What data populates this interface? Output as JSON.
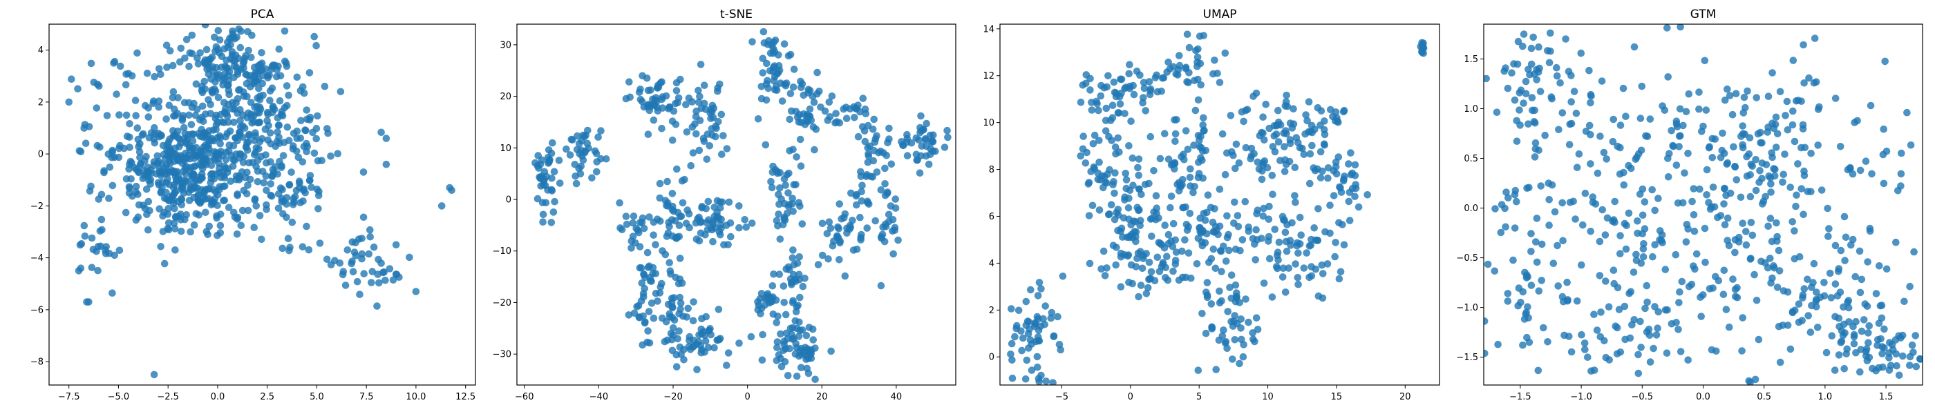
{
  "chart_data": [
    {
      "type": "scatter",
      "title": "PCA",
      "xlabel": "",
      "ylabel": "",
      "xlim": [
        -8.5,
        13.0
      ],
      "ylim": [
        -8.9,
        5.0
      ],
      "xticks": [
        -7.5,
        -5.0,
        -2.5,
        0.0,
        2.5,
        5.0,
        7.5,
        10.0,
        12.5
      ],
      "xtick_labels": [
        "−7.5",
        "−5.0",
        "−2.5",
        "0.0",
        "2.5",
        "5.0",
        "7.5",
        "10.0",
        "12.5"
      ],
      "yticks": [
        -8,
        -6,
        -4,
        -2,
        0,
        2,
        4
      ],
      "ytick_labels": [
        "−8",
        "−6",
        "−4",
        "−2",
        "0",
        "2",
        "4"
      ],
      "grid": false,
      "point_color": "#1f77b4",
      "clusters": [
        {
          "cx": -1.5,
          "cy": -0.5,
          "sx": 1.2,
          "sy": 1.2,
          "n": 340
        },
        {
          "cx": 1.5,
          "cy": 1.5,
          "sx": 1.8,
          "sy": 1.6,
          "n": 260
        },
        {
          "cx": -4.5,
          "cy": 0.5,
          "sx": 1.6,
          "sy": 1.5,
          "n": 110
        },
        {
          "cx": 0.5,
          "cy": 3.6,
          "sx": 1.4,
          "sy": 0.5,
          "n": 70
        },
        {
          "cx": 3.5,
          "cy": -1.0,
          "sx": 1.6,
          "sy": 1.3,
          "n": 90
        },
        {
          "cx": 7.3,
          "cy": -4.2,
          "sx": 1.1,
          "sy": 0.6,
          "n": 45
        },
        {
          "cx": -6.2,
          "cy": -3.6,
          "sx": 0.5,
          "sy": 0.9,
          "n": 20
        }
      ],
      "points": [
        {
          "x": -3.2,
          "y": -8.5
        },
        {
          "x": -6.5,
          "y": -5.7
        },
        {
          "x": -6.6,
          "y": -5.7
        },
        {
          "x": -7.0,
          "y": -4.5
        },
        {
          "x": -6.9,
          "y": -4.4
        },
        {
          "x": 11.3,
          "y": -2.0
        },
        {
          "x": 11.8,
          "y": -1.4
        },
        {
          "x": 11.7,
          "y": -1.3
        },
        {
          "x": 10.0,
          "y": -5.3
        },
        {
          "x": 8.5,
          "y": 0.6
        },
        {
          "x": 8.5,
          "y": -0.4
        },
        {
          "x": 9.0,
          "y": -3.5
        },
        {
          "x": -7.5,
          "y": 2.0
        },
        {
          "x": -5.1,
          "y": 2.3
        },
        {
          "x": -5.2,
          "y": -3.9
        },
        {
          "x": 0.5,
          "y": 4.3
        },
        {
          "x": -0.5,
          "y": -3.1
        },
        {
          "x": 6.2,
          "y": 2.4
        }
      ]
    },
    {
      "type": "scatter",
      "title": "t-SNE",
      "xlabel": "",
      "ylabel": "",
      "xlim": [
        -62,
        56
      ],
      "ylim": [
        -36,
        34
      ],
      "xticks": [
        -60,
        -40,
        -20,
        0,
        20,
        40
      ],
      "xtick_labels": [
        "−60",
        "−40",
        "−20",
        "0",
        "20",
        "40"
      ],
      "yticks": [
        -30,
        -20,
        -10,
        0,
        10,
        20,
        30
      ],
      "ytick_labels": [
        "−30",
        "−20",
        "−10",
        "0",
        "10",
        "20",
        "30"
      ],
      "grid": false,
      "point_color": "#1f77b4",
      "clusters": [
        {
          "cx": -54,
          "cy": 4,
          "sx": 1.8,
          "sy": 3.5,
          "n": 40
        },
        {
          "cx": -44,
          "cy": 9,
          "sx": 2.5,
          "sy": 2.5,
          "n": 35
        },
        {
          "cx": -22,
          "cy": 19,
          "sx": 4.5,
          "sy": 2.5,
          "n": 55
        },
        {
          "cx": -10,
          "cy": 16,
          "sx": 3.0,
          "sy": 4.0,
          "n": 40
        },
        {
          "cx": 7,
          "cy": 25,
          "sx": 2.5,
          "sy": 4.5,
          "n": 45
        },
        {
          "cx": 16,
          "cy": 18,
          "sx": 3.5,
          "sy": 4.0,
          "n": 45
        },
        {
          "cx": 30,
          "cy": 16,
          "sx": 3.0,
          "sy": 3.0,
          "n": 25
        },
        {
          "cx": 47,
          "cy": 11,
          "sx": 3.0,
          "sy": 2.0,
          "n": 40
        },
        {
          "cx": 33,
          "cy": 5,
          "sx": 3.0,
          "sy": 4.5,
          "n": 30
        },
        {
          "cx": 10,
          "cy": 2,
          "sx": 2.5,
          "sy": 5.5,
          "n": 40
        },
        {
          "cx": -20,
          "cy": -1,
          "sx": 2.5,
          "sy": 5.0,
          "n": 35
        },
        {
          "cx": -8,
          "cy": -5,
          "sx": 4.0,
          "sy": 2.5,
          "n": 50
        },
        {
          "cx": -28,
          "cy": -5,
          "sx": 3.0,
          "sy": 2.0,
          "n": 25
        },
        {
          "cx": 26,
          "cy": -6,
          "sx": 3.0,
          "sy": 2.5,
          "n": 35
        },
        {
          "cx": 38,
          "cy": -4,
          "sx": 2.5,
          "sy": 5.0,
          "n": 30
        },
        {
          "cx": -28,
          "cy": -18,
          "sx": 2.0,
          "sy": 5.0,
          "n": 40
        },
        {
          "cx": -20,
          "cy": -20,
          "sx": 2.0,
          "sy": 4.5,
          "n": 30
        },
        {
          "cx": -13,
          "cy": -27,
          "sx": 4.0,
          "sy": 3.0,
          "n": 50
        },
        {
          "cx": 5,
          "cy": -21,
          "sx": 2.5,
          "sy": 3.0,
          "n": 30
        },
        {
          "cx": 12,
          "cy": -16,
          "sx": 2.0,
          "sy": 5.0,
          "n": 30
        },
        {
          "cx": 13,
          "cy": -29,
          "sx": 3.5,
          "sy": 2.5,
          "n": 55
        }
      ],
      "points": []
    },
    {
      "type": "scatter",
      "title": "UMAP",
      "xlabel": "",
      "ylabel": "",
      "xlim": [
        -9.5,
        22.5
      ],
      "ylim": [
        -1.2,
        14.2
      ],
      "xticks": [
        -5,
        0,
        5,
        10,
        15,
        20
      ],
      "xtick_labels": [
        "−5",
        "0",
        "5",
        "10",
        "15",
        "20"
      ],
      "yticks": [
        0,
        2,
        4,
        6,
        8,
        10,
        12,
        14
      ],
      "ytick_labels": [
        "0",
        "2",
        "4",
        "6",
        "8",
        "10",
        "12",
        "14"
      ],
      "grid": false,
      "point_color": "#1f77b4",
      "clusters": [
        {
          "cx": -7.0,
          "cy": 1.0,
          "sx": 1.0,
          "sy": 1.2,
          "n": 60
        },
        {
          "cx": -0.5,
          "cy": 11.4,
          "sx": 1.5,
          "sy": 0.6,
          "n": 50
        },
        {
          "cx": 4.5,
          "cy": 12.4,
          "sx": 1.2,
          "sy": 0.5,
          "n": 30
        },
        {
          "cx": -2.5,
          "cy": 9.0,
          "sx": 0.8,
          "sy": 1.2,
          "n": 30
        },
        {
          "cx": 0.0,
          "cy": 6.5,
          "sx": 1.5,
          "sy": 1.4,
          "n": 80
        },
        {
          "cx": 1.5,
          "cy": 4.0,
          "sx": 2.0,
          "sy": 0.6,
          "n": 60
        },
        {
          "cx": 4.5,
          "cy": 8.5,
          "sx": 1.2,
          "sy": 1.8,
          "n": 70
        },
        {
          "cx": 6.0,
          "cy": 5.0,
          "sx": 1.0,
          "sy": 1.0,
          "n": 40
        },
        {
          "cx": 7.0,
          "cy": 1.5,
          "sx": 1.0,
          "sy": 1.0,
          "n": 50
        },
        {
          "cx": 10.0,
          "cy": 9.0,
          "sx": 1.5,
          "sy": 1.0,
          "n": 70
        },
        {
          "cx": 13.5,
          "cy": 9.5,
          "sx": 1.2,
          "sy": 0.8,
          "n": 40
        },
        {
          "cx": 15.5,
          "cy": 7.5,
          "sx": 0.8,
          "sy": 0.8,
          "n": 30
        },
        {
          "cx": 12.5,
          "cy": 4.5,
          "sx": 1.5,
          "sy": 1.0,
          "n": 60
        },
        {
          "cx": 9.5,
          "cy": 5.5,
          "sx": 0.8,
          "sy": 0.6,
          "n": 20
        },
        {
          "cx": 21.2,
          "cy": 13.2,
          "sx": 0.15,
          "sy": 0.2,
          "n": 10
        }
      ],
      "points": []
    },
    {
      "type": "scatter",
      "title": "GTM",
      "xlabel": "",
      "ylabel": "",
      "xlim": [
        -1.8,
        1.8
      ],
      "ylim": [
        -1.78,
        1.85
      ],
      "xticks": [
        -1.5,
        -1.0,
        -0.5,
        0.0,
        0.5,
        1.0,
        1.5
      ],
      "xtick_labels": [
        "−1.5",
        "−1.0",
        "−0.5",
        "0.0",
        "0.5",
        "1.0",
        "1.5"
      ],
      "yticks": [
        -1.5,
        -1.0,
        -0.5,
        0.0,
        0.5,
        1.0,
        1.5
      ],
      "ytick_labels": [
        "−1.5",
        "−1.0",
        "−0.5",
        "0.0",
        "0.5",
        "1.0",
        "1.5"
      ],
      "grid": false,
      "point_color": "#1f77b4",
      "clusters": [
        {
          "cx": 0.0,
          "cy": 0.0,
          "sx": 0.95,
          "sy": 0.95,
          "n": 420
        },
        {
          "cx": -1.35,
          "cy": 1.2,
          "sx": 0.2,
          "sy": 0.3,
          "n": 60
        },
        {
          "cx": -1.45,
          "cy": -0.5,
          "sx": 0.15,
          "sy": 0.5,
          "n": 50
        },
        {
          "cx": 1.45,
          "cy": -1.45,
          "sx": 0.2,
          "sy": 0.15,
          "n": 60
        },
        {
          "cx": 0.6,
          "cy": 0.6,
          "sx": 0.3,
          "sy": 0.25,
          "n": 50
        },
        {
          "cx": -0.6,
          "cy": -1.3,
          "sx": 0.3,
          "sy": 0.2,
          "n": 40
        },
        {
          "cx": 1.0,
          "cy": -1.0,
          "sx": 0.3,
          "sy": 0.2,
          "n": 40
        }
      ],
      "points": []
    }
  ]
}
